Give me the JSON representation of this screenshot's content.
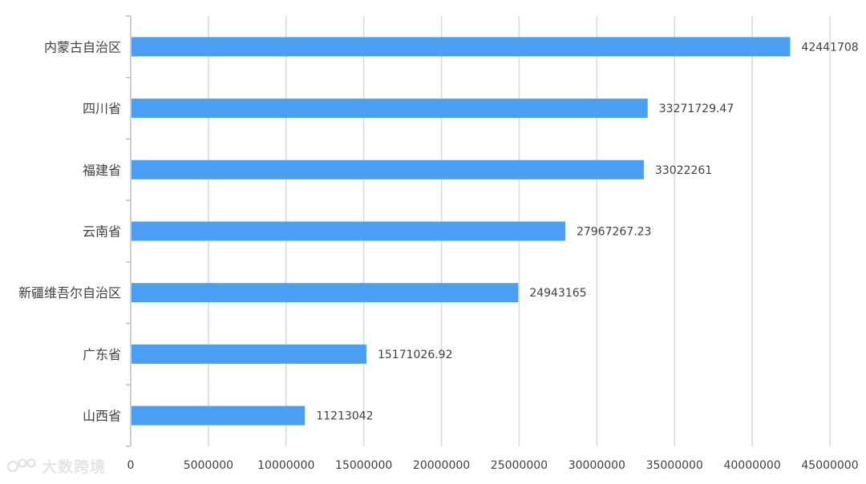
{
  "chart_data": {
    "type": "bar",
    "orientation": "horizontal",
    "categories": [
      "内蒙古自治区",
      "四川省",
      "福建省",
      "云南省",
      "新疆维吾尔自治区",
      "广东省",
      "山西省"
    ],
    "values": [
      42441708,
      33271729.47,
      33022261,
      27967267.23,
      24943165,
      15171026.92,
      11213042
    ],
    "data_labels": [
      "42441708",
      "33271729.47",
      "33022261",
      "27967267.23",
      "24943165",
      "15171026.92",
      "11213042"
    ],
    "xlim": [
      0,
      45000000
    ],
    "x_ticks": [
      "0",
      "5000000",
      "10000000",
      "15000000",
      "20000000",
      "25000000",
      "30000000",
      "35000000",
      "40000000",
      "45000000"
    ],
    "title": "",
    "xlabel": "",
    "ylabel": "",
    "grid": "vertical",
    "legend": "none",
    "bar_color": "#4a9ff5",
    "grid_color": "#d9d9d9",
    "axis_color": "#bfbfbf"
  },
  "watermark": {
    "text": "大数跨境",
    "icon": "logo-icon"
  }
}
